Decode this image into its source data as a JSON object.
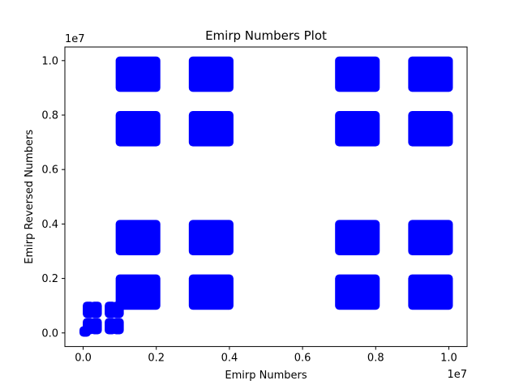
{
  "chart_data": {
    "type": "scatter",
    "title": "Emirp Numbers Plot",
    "xlabel": "Emirp Numbers",
    "ylabel": "Emirp Reversed Numbers",
    "x_offset_label": "1e7",
    "y_offset_label": "1e7",
    "xlim": [
      -0.05,
      1.05
    ],
    "ylim": [
      -0.05,
      1.05
    ],
    "x_ticks": [
      0.0,
      0.2,
      0.4,
      0.6,
      0.8,
      1.0
    ],
    "y_ticks": [
      0.0,
      0.2,
      0.4,
      0.6,
      0.8,
      1.0
    ],
    "x_tick_labels": [
      "0.0",
      "0.2",
      "0.4",
      "0.6",
      "0.8",
      "1.0"
    ],
    "y_tick_labels": [
      "0.0",
      "0.2",
      "0.4",
      "0.6",
      "0.8",
      "1.0"
    ],
    "grid": false,
    "legend": "none",
    "marker_color": "#0000ff",
    "series": [
      {
        "clusters": [
          {
            "x": [
              0.1,
              0.2
            ],
            "y": [
              0.1,
              0.2
            ]
          },
          {
            "x": [
              0.3,
              0.4
            ],
            "y": [
              0.1,
              0.2
            ]
          },
          {
            "x": [
              0.7,
              0.8
            ],
            "y": [
              0.1,
              0.2
            ]
          },
          {
            "x": [
              0.9,
              1.0
            ],
            "y": [
              0.1,
              0.2
            ]
          },
          {
            "x": [
              0.1,
              0.2
            ],
            "y": [
              0.3,
              0.4
            ]
          },
          {
            "x": [
              0.3,
              0.4
            ],
            "y": [
              0.3,
              0.4
            ]
          },
          {
            "x": [
              0.7,
              0.8
            ],
            "y": [
              0.3,
              0.4
            ]
          },
          {
            "x": [
              0.9,
              1.0
            ],
            "y": [
              0.3,
              0.4
            ]
          },
          {
            "x": [
              0.1,
              0.2
            ],
            "y": [
              0.7,
              0.8
            ]
          },
          {
            "x": [
              0.3,
              0.4
            ],
            "y": [
              0.7,
              0.8
            ]
          },
          {
            "x": [
              0.7,
              0.8
            ],
            "y": [
              0.7,
              0.8
            ]
          },
          {
            "x": [
              0.9,
              1.0
            ],
            "y": [
              0.7,
              0.8
            ]
          },
          {
            "x": [
              0.1,
              0.2
            ],
            "y": [
              0.9,
              1.0
            ]
          },
          {
            "x": [
              0.3,
              0.4
            ],
            "y": [
              0.9,
              1.0
            ]
          },
          {
            "x": [
              0.7,
              0.8
            ],
            "y": [
              0.9,
              1.0
            ]
          },
          {
            "x": [
              0.9,
              1.0
            ],
            "y": [
              0.9,
              1.0
            ]
          },
          {
            "x": [
              0.01,
              0.02
            ],
            "y": [
              0.07,
              0.1
            ]
          },
          {
            "x": [
              0.03,
              0.04
            ],
            "y": [
              0.07,
              0.1
            ]
          },
          {
            "x": [
              0.07,
              0.08
            ],
            "y": [
              0.07,
              0.1
            ]
          },
          {
            "x": [
              0.09,
              0.1
            ],
            "y": [
              0.07,
              0.1
            ]
          },
          {
            "x": [
              0.01,
              0.02
            ],
            "y": [
              0.01,
              0.04
            ]
          },
          {
            "x": [
              0.03,
              0.04
            ],
            "y": [
              0.01,
              0.04
            ]
          },
          {
            "x": [
              0.07,
              0.08
            ],
            "y": [
              0.01,
              0.04
            ]
          },
          {
            "x": [
              0.09,
              0.1
            ],
            "y": [
              0.01,
              0.04
            ]
          },
          {
            "x": [
              0.001,
              0.01
            ],
            "y": [
              0.001,
              0.01
            ]
          }
        ]
      }
    ]
  }
}
